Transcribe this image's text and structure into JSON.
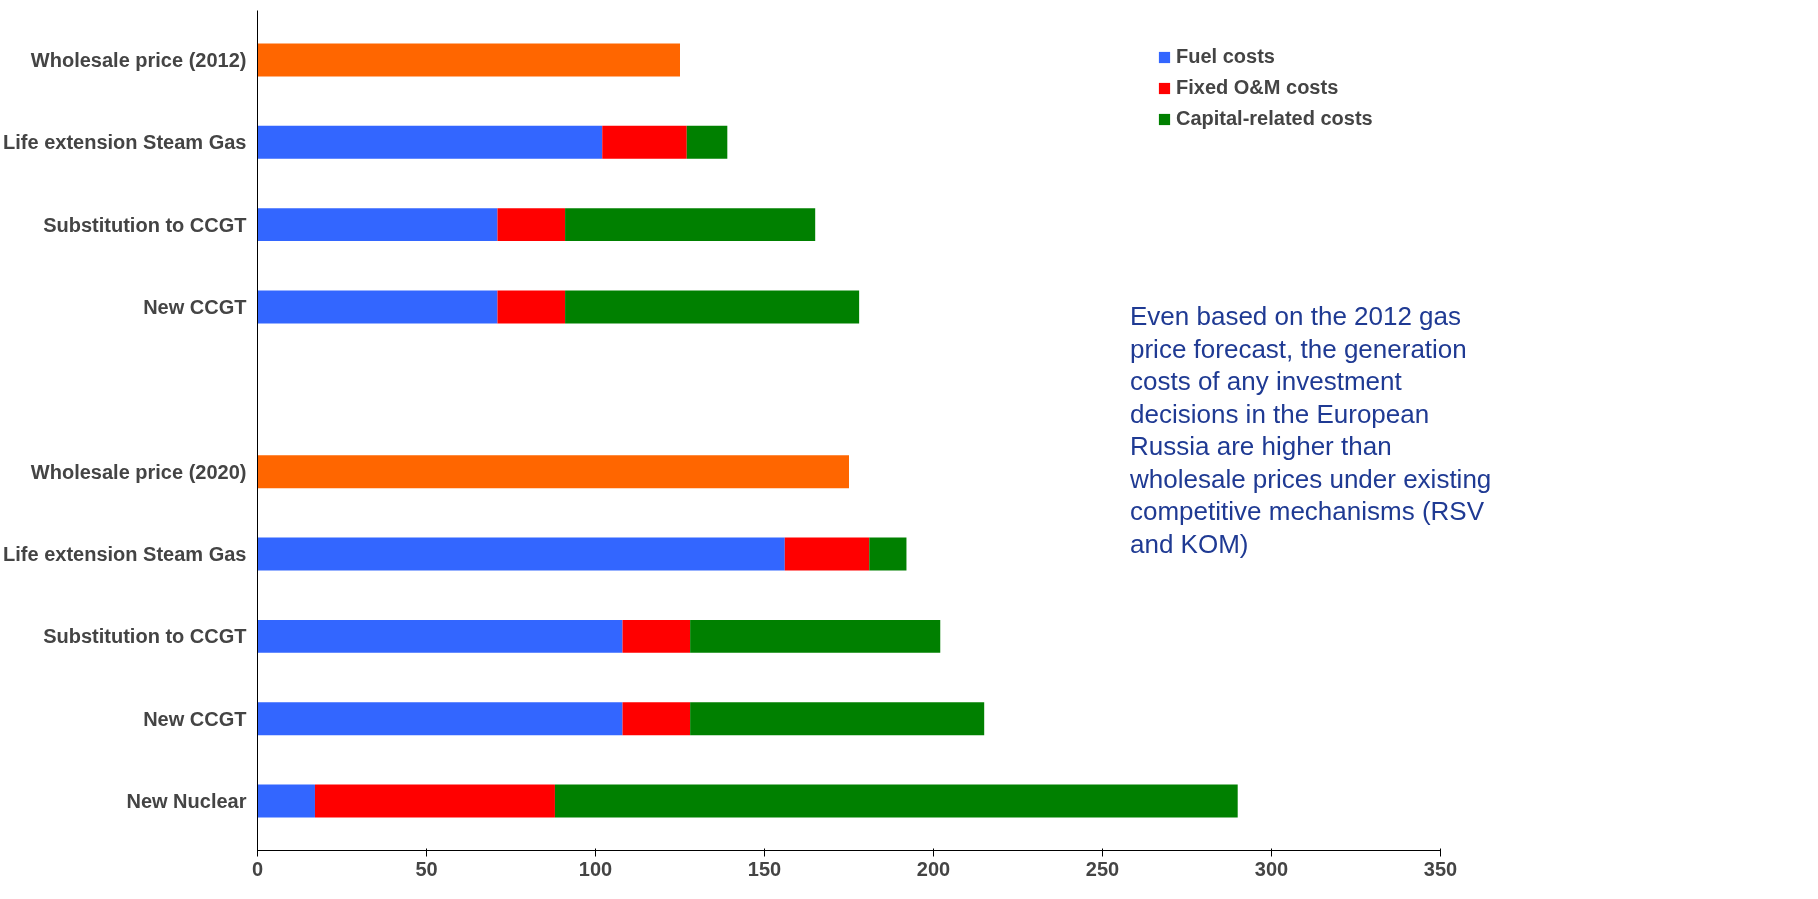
{
  "chart_data": {
    "type": "bar",
    "orientation": "horizontal",
    "stacked": true,
    "categories": [
      "Wholesale price (2012)",
      "Life extension Steam Gas",
      "Substitution to CCGT",
      "New CCGT",
      null,
      "Wholesale price (2020)",
      "Life extension Steam Gas",
      "Substitution to CCGT",
      "New CCGT",
      "New Nuclear"
    ],
    "series": [
      {
        "color": "#ff6600",
        "values": [
          125,
          null,
          null,
          null,
          null,
          175,
          null,
          null,
          null,
          null
        ]
      },
      {
        "name": "Fuel costs",
        "color": "#3366ff",
        "values": [
          null,
          102,
          71,
          71,
          null,
          null,
          156,
          108,
          108,
          17
        ]
      },
      {
        "name": "Fixed O&M costs",
        "color": "#ff0000",
        "values": [
          null,
          25,
          20,
          20,
          null,
          null,
          25,
          20,
          20,
          71
        ]
      },
      {
        "name": "Capital-related costs",
        "color": "#008000",
        "values": [
          null,
          12,
          74,
          87,
          null,
          null,
          11,
          74,
          87,
          202
        ]
      }
    ],
    "xlim": [
      0,
      350
    ],
    "xticks": [
      0,
      50,
      100,
      150,
      200,
      250,
      300,
      350
    ],
    "grid": false,
    "legend": "top right",
    "annotations": [
      "Even based on the 2012 gas price forecast, the generation costs of any investment decisions in the European Russia are higher than wholesale prices under existing competitive mechanisms (RSV and KOM)"
    ]
  }
}
